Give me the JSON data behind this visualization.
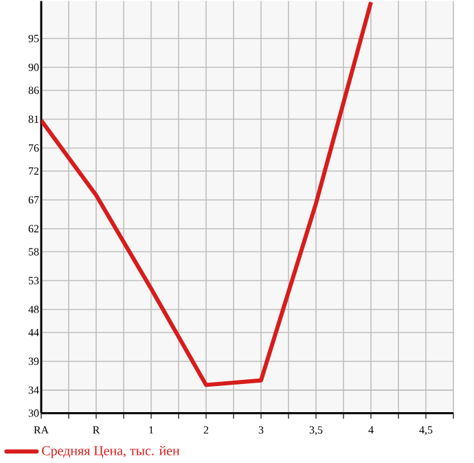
{
  "chart_data": {
    "type": "line",
    "categories": [
      "RA",
      "R",
      "1",
      "2",
      "3",
      "3,5",
      "4",
      "4,5"
    ],
    "series": [
      {
        "name": "Средняя Цена, тыс. йен",
        "color": "#d71c1c",
        "values": [
          80.8,
          67.8,
          51.6,
          34.9,
          35.7,
          66.4,
          101.3,
          null
        ]
      }
    ],
    "ylim": [
      30,
      101.5
    ],
    "yticks": [
      30,
      34,
      39,
      44,
      48,
      53,
      58,
      62,
      67,
      72,
      76,
      81,
      86,
      90,
      95
    ],
    "grid": true,
    "legend": "bottom",
    "marker": "none",
    "line_style": "solid"
  }
}
